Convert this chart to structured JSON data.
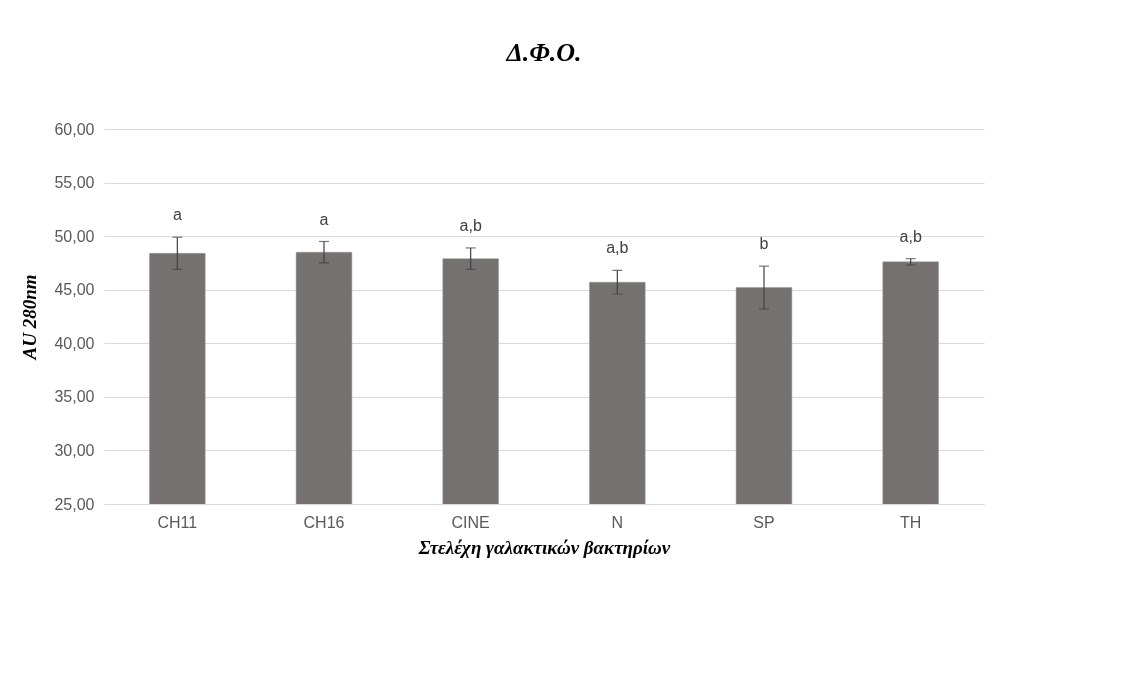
{
  "chart_data": {
    "type": "bar",
    "title": "Δ.Φ.Ο.",
    "xlabel": "Στελέχη γαλακτικών βακτηρίων",
    "ylabel": "AU 280nm",
    "categories": [
      "CH11",
      "CH16",
      "CINE",
      "N",
      "SP",
      "TH"
    ],
    "values": [
      48.4,
      48.5,
      47.9,
      45.7,
      45.2,
      47.6
    ],
    "errors": [
      1.5,
      1.0,
      1.0,
      1.1,
      2.0,
      0.3
    ],
    "color": "#767171",
    "ylim": [
      25,
      60
    ],
    "yticks": [
      {
        "value": 25,
        "label": "25,00"
      },
      {
        "value": 30,
        "label": "30,00"
      },
      {
        "value": 35,
        "label": "35,00"
      },
      {
        "value": 40,
        "label": "40,00"
      },
      {
        "value": 45,
        "label": "45,00"
      },
      {
        "value": 50,
        "label": "50,00"
      },
      {
        "value": 55,
        "label": "55,00"
      },
      {
        "value": 60,
        "label": "60,00"
      }
    ],
    "grid": "y",
    "annotations": [
      "a",
      "a",
      "a,b",
      "a,b",
      "b",
      "a,b"
    ]
  }
}
